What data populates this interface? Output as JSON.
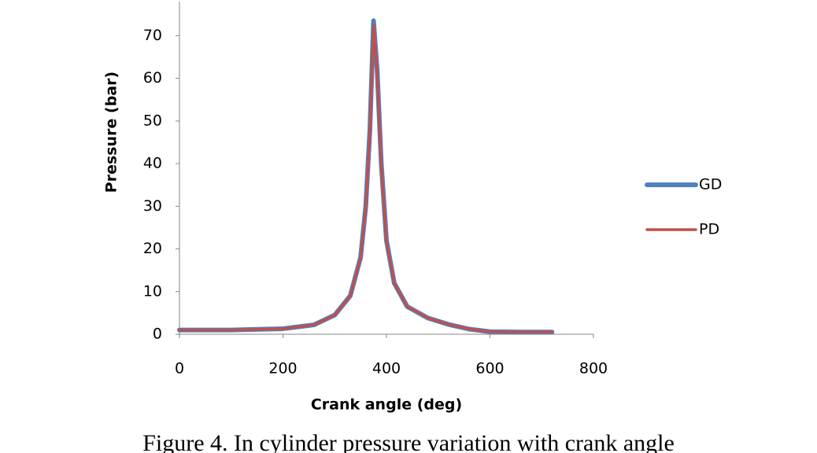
{
  "chart_data": {
    "type": "line",
    "caption": "Figure 4. In cylinder pressure variation with crank angle",
    "x_label": "Crank angle (deg)",
    "y_label": "Pressure (bar)",
    "xlim": [
      0,
      800
    ],
    "xticks": [
      0,
      200,
      400,
      600,
      800
    ],
    "ylim": [
      0,
      78
    ],
    "yticks": [
      0,
      10,
      20,
      30,
      40,
      50,
      60,
      70
    ],
    "grid": false,
    "legend": "right",
    "series": [
      {
        "name": "GD",
        "color": "#4f81bd",
        "x": [
          0,
          100,
          200,
          260,
          300,
          330,
          350,
          360,
          368,
          375,
          382,
          390,
          400,
          415,
          440,
          480,
          520,
          560,
          600,
          660,
          720
        ],
        "values": [
          1,
          1,
          1.3,
          2.2,
          4.5,
          9,
          18,
          30,
          48,
          73.5,
          62,
          40,
          22,
          12,
          6.5,
          3.8,
          2.3,
          1.2,
          0.6,
          0.5,
          0.5
        ]
      },
      {
        "name": "PD",
        "color": "#c0504d",
        "x": [
          0,
          100,
          200,
          260,
          300,
          330,
          350,
          360,
          368,
          375,
          382,
          390,
          400,
          415,
          440,
          480,
          520,
          560,
          600,
          660,
          720
        ],
        "values": [
          1,
          1,
          1.3,
          2.2,
          4.5,
          9,
          18,
          30,
          48,
          72.5,
          61,
          39,
          21.5,
          12,
          6.5,
          3.8,
          2.3,
          1.2,
          0.6,
          0.5,
          0.5
        ]
      }
    ]
  }
}
